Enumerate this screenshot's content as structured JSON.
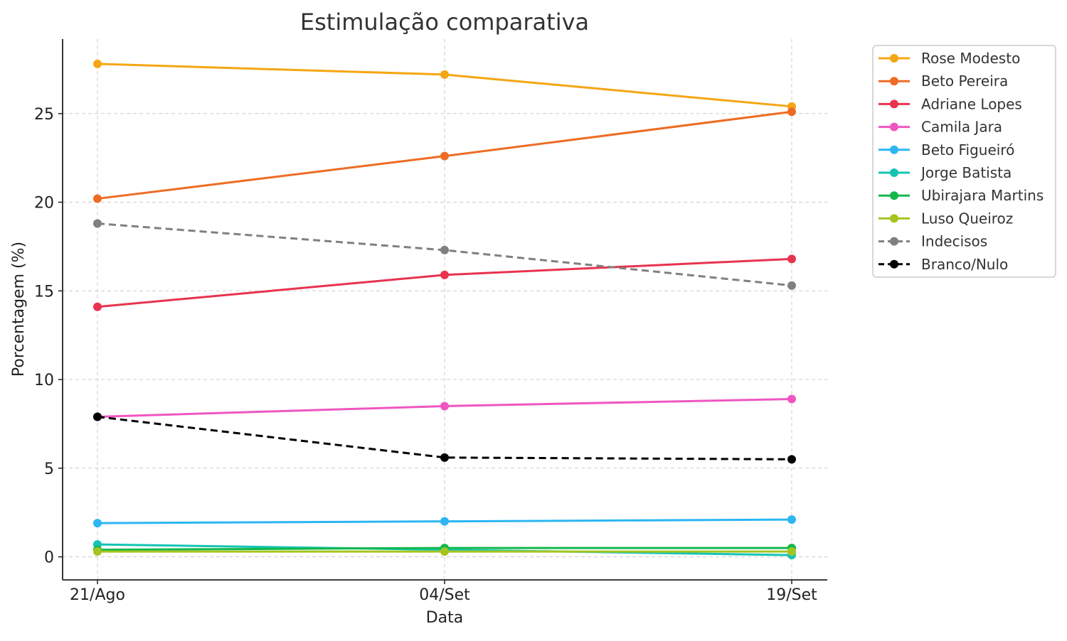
{
  "chart_data": {
    "type": "line",
    "title": "Estimulação comparativa",
    "xlabel": "Data",
    "ylabel": "Porcentagem (%)",
    "categories": [
      "21/Ago",
      "04/Set",
      "19/Set"
    ],
    "ylim": [
      -1.3,
      29.2
    ],
    "yticks": [
      0,
      5,
      10,
      15,
      20,
      25
    ],
    "grid": true,
    "legend_position": "outside-top-right",
    "series": [
      {
        "name": "Rose Modesto",
        "values": [
          27.8,
          27.2,
          25.4
        ],
        "color": "#f5a614",
        "dashed": false
      },
      {
        "name": "Beto Pereira",
        "values": [
          20.2,
          22.6,
          25.1
        ],
        "color": "#ee6c23",
        "dashed": false
      },
      {
        "name": "Adriane Lopes",
        "values": [
          14.1,
          15.9,
          16.8
        ],
        "color": "#e8334f",
        "dashed": false
      },
      {
        "name": "Camila Jara",
        "values": [
          7.9,
          8.5,
          8.9
        ],
        "color": "#f056c1",
        "dashed": false
      },
      {
        "name": "Beto Figueiró",
        "values": [
          1.9,
          2.0,
          2.1
        ],
        "color": "#2cb6f2",
        "dashed": false
      },
      {
        "name": "Jorge Batista",
        "values": [
          0.7,
          0.4,
          0.1
        ],
        "color": "#14c4b5",
        "dashed": false
      },
      {
        "name": "Ubirajara Martins",
        "values": [
          0.4,
          0.5,
          0.5
        ],
        "color": "#13b84c",
        "dashed": false
      },
      {
        "name": "Luso Queiroz",
        "values": [
          0.3,
          0.3,
          0.3
        ],
        "color": "#a4c520",
        "dashed": false
      },
      {
        "name": "Indecisos",
        "values": [
          18.8,
          17.3,
          15.3
        ],
        "color": "#808080",
        "dashed": true
      },
      {
        "name": "Branco/Nulo",
        "values": [
          7.9,
          5.6,
          5.5
        ],
        "color": "#000000",
        "dashed": true
      }
    ]
  }
}
